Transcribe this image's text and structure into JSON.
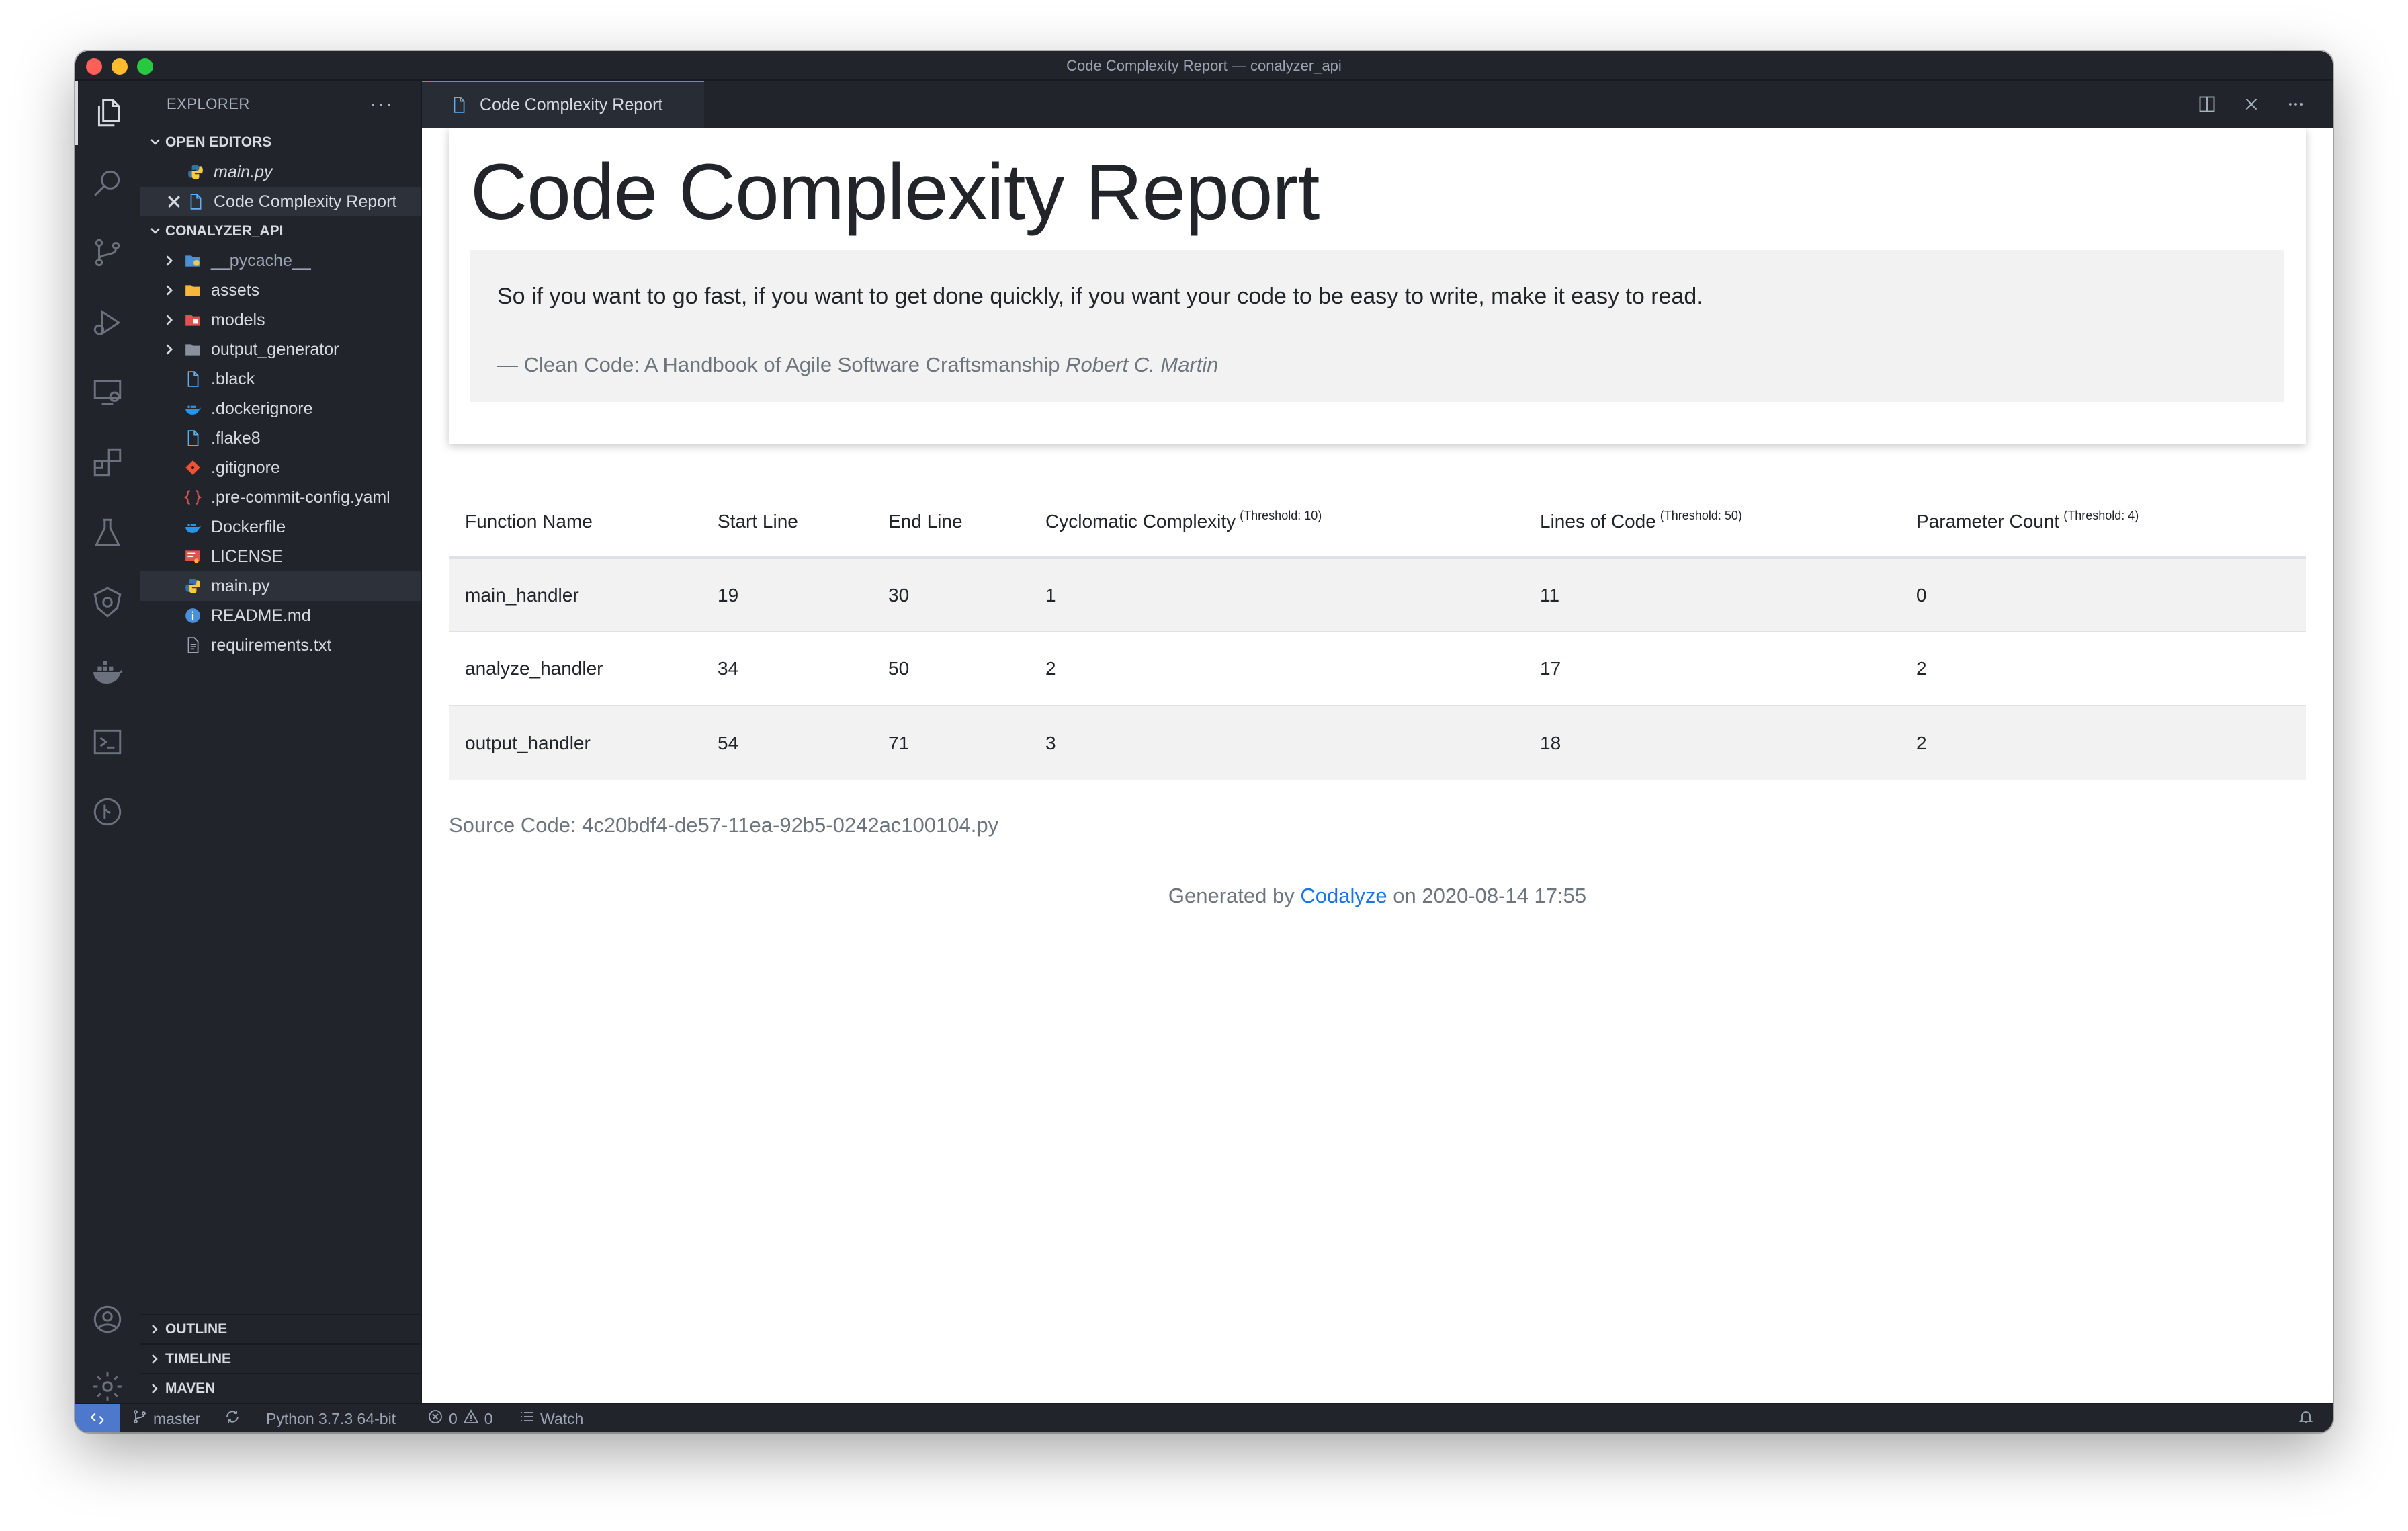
{
  "window": {
    "title": "Code Complexity Report — conalyzer_api"
  },
  "sidebar": {
    "header": "EXPLORER",
    "more": "···",
    "open_editors": {
      "title": "OPEN EDITORS",
      "items": [
        {
          "label": "main.py"
        },
        {
          "label": "Code Complexity Report"
        }
      ]
    },
    "project": {
      "title": "CONALYZER_API",
      "items": [
        {
          "label": "__pycache__"
        },
        {
          "label": "assets"
        },
        {
          "label": "models"
        },
        {
          "label": "output_generator"
        },
        {
          "label": ".black"
        },
        {
          "label": ".dockerignore"
        },
        {
          "label": ".flake8"
        },
        {
          "label": ".gitignore"
        },
        {
          "label": ".pre-commit-config.yaml"
        },
        {
          "label": "Dockerfile"
        },
        {
          "label": "LICENSE"
        },
        {
          "label": "main.py"
        },
        {
          "label": "README.md"
        },
        {
          "label": "requirements.txt"
        }
      ]
    },
    "bottom_sections": [
      "OUTLINE",
      "TIMELINE",
      "MAVEN"
    ]
  },
  "tab": {
    "label": "Code Complexity Report"
  },
  "report": {
    "title": "Code Complexity Report",
    "quote": "So if you want to go fast, if you want to get done quickly, if you want your code to be easy to write, make it easy to read.",
    "quote_source": "— Clean Code: A Handbook of Agile Software Craftsmanship",
    "quote_author": "Robert C. Martin",
    "columns": [
      {
        "label": "Function Name",
        "threshold": ""
      },
      {
        "label": "Start Line",
        "threshold": ""
      },
      {
        "label": "End Line",
        "threshold": ""
      },
      {
        "label": "Cyclomatic Complexity",
        "threshold": "(Threshold: 10)"
      },
      {
        "label": "Lines of Code",
        "threshold": "(Threshold: 50)"
      },
      {
        "label": "Parameter Count",
        "threshold": "(Threshold: 4)"
      }
    ],
    "rows": [
      [
        "main_handler",
        "19",
        "30",
        "1",
        "11",
        "0"
      ],
      [
        "analyze_handler",
        "34",
        "50",
        "2",
        "17",
        "2"
      ],
      [
        "output_handler",
        "54",
        "71",
        "3",
        "18",
        "2"
      ]
    ],
    "source_code": "Source Code: 4c20bdf4-de57-11ea-92b5-0242ac100104.py",
    "generated_prefix": "Generated by",
    "generated_link": "Codalyze",
    "generated_suffix": "on 2020-08-14 17:55"
  },
  "statusbar": {
    "branch": "master",
    "python": "Python 3.7.3 64-bit",
    "errors": "0",
    "warnings": "0",
    "watch": "Watch"
  }
}
